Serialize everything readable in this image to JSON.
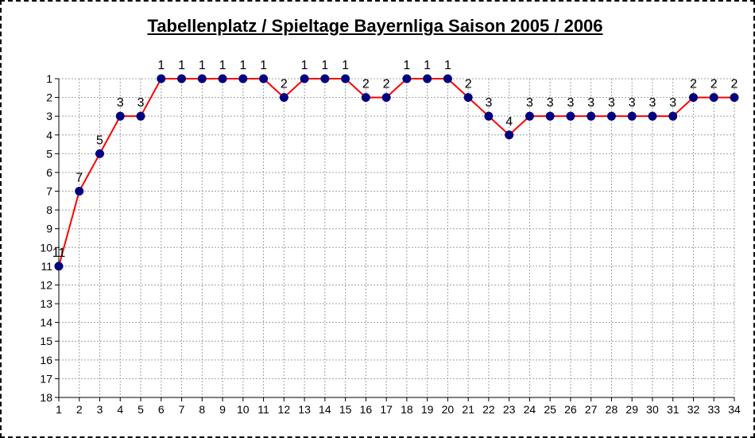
{
  "chart_data": {
    "type": "line",
    "title": "Tabellenplatz / Spieltage Bayernliga Saison 2005 / 2006",
    "xlabel": "",
    "ylabel": "",
    "x": [
      1,
      2,
      3,
      4,
      5,
      6,
      7,
      8,
      9,
      10,
      11,
      12,
      13,
      14,
      15,
      16,
      17,
      18,
      19,
      20,
      21,
      22,
      23,
      24,
      25,
      26,
      27,
      28,
      29,
      30,
      31,
      32,
      33,
      34
    ],
    "y_ticks": [
      1,
      2,
      3,
      4,
      5,
      6,
      7,
      8,
      9,
      10,
      11,
      12,
      13,
      14,
      15,
      16,
      17,
      18
    ],
    "ylim": [
      1,
      18
    ],
    "y_reversed": true,
    "grid": true,
    "legend": "none",
    "series": [
      {
        "values": [
          11,
          7,
          5,
          3,
          3,
          1,
          1,
          1,
          1,
          1,
          1,
          2,
          1,
          1,
          1,
          2,
          2,
          1,
          1,
          1,
          2,
          3,
          4,
          3,
          3,
          3,
          3,
          3,
          3,
          3,
          3,
          2,
          2,
          2
        ],
        "line_color": "#ff0000",
        "marker_color": "#000080",
        "data_labels": true
      }
    ]
  }
}
